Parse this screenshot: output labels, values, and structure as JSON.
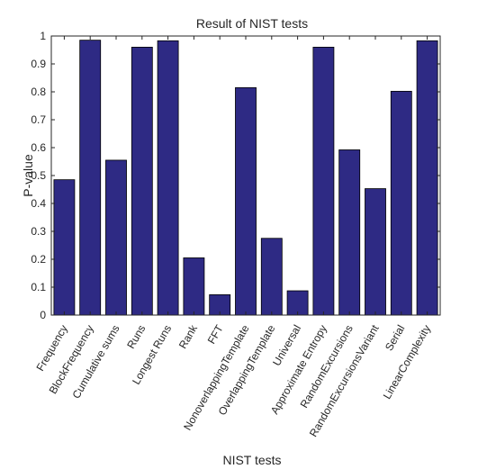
{
  "chart_data": {
    "type": "bar",
    "title": "Result of NIST tests",
    "xlabel": "NIST tests",
    "ylabel": "P-value",
    "ylim": [
      0,
      1
    ],
    "yticks": [
      0,
      0.1,
      0.2,
      0.3,
      0.4,
      0.5,
      0.6,
      0.7,
      0.8,
      0.9,
      1
    ],
    "ytick_labels": [
      "0",
      "0.1",
      "0.2",
      "0.3",
      "0.4",
      "0.5",
      "0.6",
      "0.7",
      "0.8",
      "0.9",
      "1"
    ],
    "grid": false,
    "legend": "none",
    "bar_color": "#2e2a84",
    "categories": [
      "Frequency",
      "BlockFrequency",
      "Cumulative sums",
      "Runs",
      "Longest Runs",
      "Rank",
      "FFT",
      "NonoverlappingTemplate",
      "OverlappingTemplate",
      "Universal",
      "Approximate Entropy",
      "RandomExcursions",
      "RandomExcursionsVariant",
      "Serial",
      "LinearComplexity"
    ],
    "values": [
      0.485,
      0.985,
      0.555,
      0.96,
      0.983,
      0.205,
      0.073,
      0.815,
      0.275,
      0.087,
      0.96,
      0.592,
      0.453,
      0.802,
      0.983
    ]
  }
}
